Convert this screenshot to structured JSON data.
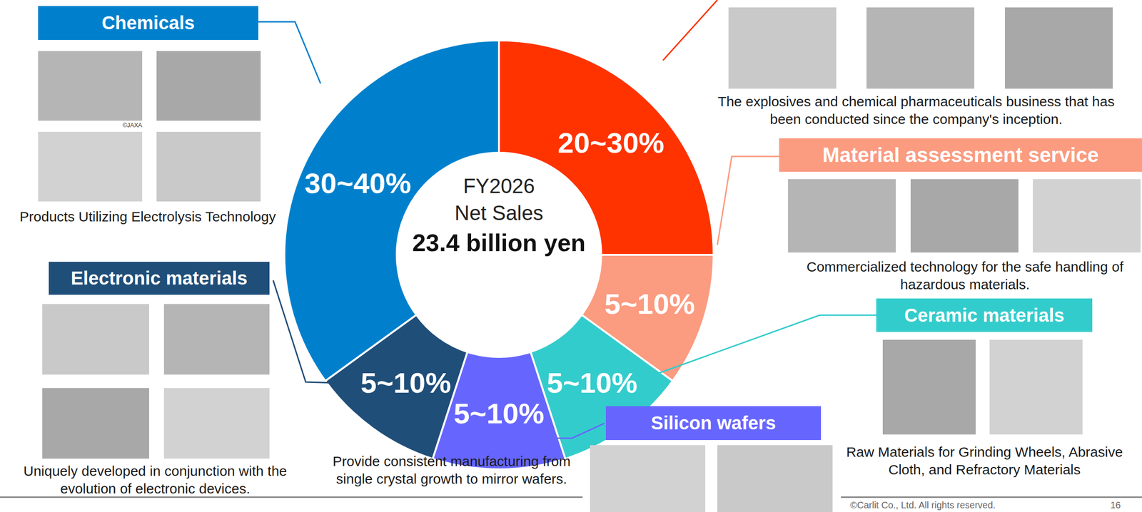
{
  "chart_data": {
    "type": "pie",
    "categories": [
      null,
      "Material assessment service",
      "Ceramic materials",
      "Silicon wafers",
      "Electronic materials",
      "Chemicals"
    ],
    "values": [
      25,
      10,
      10,
      10,
      10,
      35
    ],
    "value_labels": [
      "20~30%",
      "5~10%",
      "5~10%",
      "5~10%",
      "5~10%",
      "30~40%"
    ],
    "colors": [
      "#ff3300",
      "#fb9b80",
      "#33cccc",
      "#6666ff",
      "#1f4e79",
      "#0080cc"
    ],
    "data_labels": true,
    "center_text": [
      "FY2026",
      "Net Sales",
      "23.4 billion yen"
    ],
    "captions": [
      "The explosives and chemical pharmaceuticals business that has been conducted since the company's inception.",
      "Commercialized technology for the safe handling of hazardous materials.",
      "Raw Materials for Grinding Wheels, Abrasive Cloth, and Refractory Materials",
      "Provide consistent manufacturing from single crystal growth to mirror wafers.",
      "Uniquely developed in conjunction with the evolution of electronic devices.",
      "Products Utilizing Electrolysis Technology"
    ],
    "credits": [
      "©JAXA"
    ],
    "footer": "©Carlit Co., Ltd. All rights reserved.",
    "page": "16"
  }
}
